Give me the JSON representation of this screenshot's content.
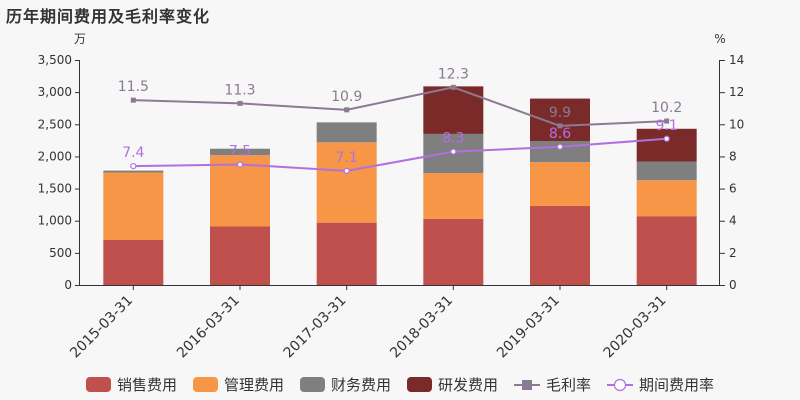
{
  "title": "历年期间费用及毛利率变化",
  "colors": {
    "sales": "#c0504d",
    "mgmt": "#f79646",
    "fin": "#7f7f7f",
    "rd": "#7b2a2a",
    "gross_margin_line": "#8c7a92",
    "period_rate_line": "#b070e0"
  },
  "chart_data": {
    "type": "bar",
    "stacked": true,
    "title": "历年期间费用及毛利率变化",
    "y_unit_label": "万",
    "y2_unit_label": "%",
    "ylim": [
      0,
      3500
    ],
    "y_ticks": [
      0,
      500,
      1000,
      1500,
      2000,
      2500,
      3000,
      3500
    ],
    "y_tick_labels": [
      "0",
      "500",
      "1,000",
      "1,500",
      "2,000",
      "2,500",
      "3,000",
      "3,500"
    ],
    "y2lim": [
      0,
      14
    ],
    "y2_ticks": [
      0,
      2,
      4,
      6,
      8,
      10,
      12,
      14
    ],
    "y2_tick_labels": [
      "0",
      "2",
      "4",
      "6",
      "8",
      "10",
      "12",
      "14"
    ],
    "grid": false,
    "legend_position": "bottom",
    "categories": [
      "2015-03-31",
      "2016-03-31",
      "2017-03-31",
      "2018-03-31",
      "2019-03-31",
      "2020-03-31"
    ],
    "series": [
      {
        "name": "销售费用",
        "key": "sales",
        "type": "bar",
        "values": [
          700,
          910,
          970,
          1030,
          1230,
          1070
        ]
      },
      {
        "name": "管理费用",
        "key": "mgmt",
        "type": "bar",
        "values": [
          1050,
          1110,
          1250,
          710,
          680,
          560
        ]
      },
      {
        "name": "财务费用",
        "key": "fin",
        "type": "bar",
        "values": [
          30,
          100,
          310,
          610,
          330,
          290
        ]
      },
      {
        "name": "研发费用",
        "key": "rd",
        "type": "bar",
        "values": [
          0,
          0,
          0,
          740,
          660,
          510
        ]
      },
      {
        "name": "毛利率",
        "key": "gross_margin_line",
        "type": "line",
        "axis": "right",
        "values": [
          11.5,
          11.3,
          10.9,
          12.3,
          9.9,
          10.2
        ],
        "labels": [
          "11.5",
          "11.3",
          "10.9",
          "12.3",
          "9.9",
          "10.2"
        ]
      },
      {
        "name": "期间费用率",
        "key": "period_rate_line",
        "type": "line",
        "axis": "right",
        "values": [
          7.4,
          7.5,
          7.1,
          8.3,
          8.6,
          9.1
        ],
        "labels": [
          "7.4",
          "7.5",
          "7.1",
          "8.3",
          "8.6",
          "9.1"
        ]
      }
    ]
  }
}
